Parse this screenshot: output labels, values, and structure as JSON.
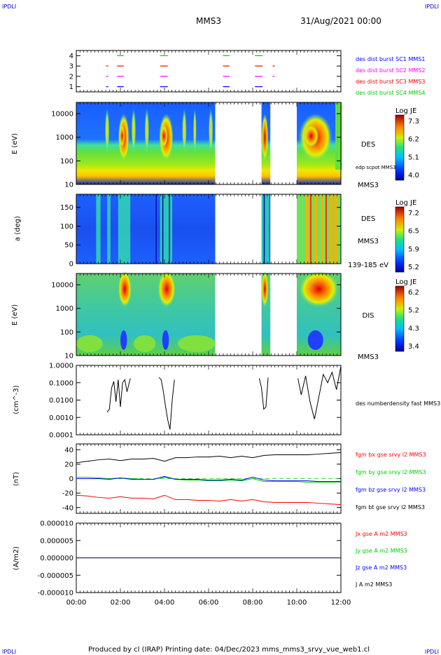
{
  "header": {
    "corner_tl": "IPDLI",
    "corner_tr": "IPDLI",
    "corner_bl": "IPDLI",
    "corner_br": "IPDLI",
    "spacecraft": "MMS3",
    "date": "31/Aug/2021 00:00"
  },
  "footer": {
    "text": "Produced by cl (IRAP)   Printing date: 04/Dec/2023   mms_mms3_srvy_vue_web1.cl"
  },
  "colors": {
    "blue": "#0000ff",
    "magenta": "#ff00ff",
    "red": "#ff0000",
    "green": "#00cc00",
    "black": "#000000"
  },
  "chart_data": [
    {
      "id": "burst",
      "type": "scatter",
      "xlim": [
        0,
        12
      ],
      "ylim": [
        0.5,
        4.5
      ],
      "yticks": [
        "1",
        "2",
        "3",
        "4"
      ],
      "legend": [
        {
          "text": "des dist burst SC1 MMS1",
          "color": "#0000ff"
        },
        {
          "text": "des dist burst SC2 MMS2",
          "color": "#ff00ff"
        },
        {
          "text": "des dist burst SC3 MMS3",
          "color": "#ff0000"
        },
        {
          "text": "des dist burst SC4 MMS4",
          "color": "#00cc00"
        }
      ],
      "intervals_hours": [
        [
          1.35,
          1.45
        ],
        [
          1.85,
          2.15
        ],
        [
          3.8,
          4.15
        ],
        [
          6.65,
          6.95
        ],
        [
          8.1,
          8.45
        ],
        [
          8.9,
          9.0
        ]
      ]
    },
    {
      "id": "des-energy",
      "type": "heatmap",
      "ylabel": "E (eV)",
      "yscale": "log",
      "ylim": [
        10,
        30000
      ],
      "yticks": [
        "10",
        "100",
        "1000",
        "10000"
      ],
      "label": "DES",
      "label2": "MMS3",
      "overlay_label": "edp scpot MMS3",
      "colorbar": {
        "title": "Log JE",
        "ticks": [
          "7.3",
          "6.2",
          "5.1",
          "4.0"
        ]
      },
      "gaps_hours": [
        [
          6.3,
          8.4
        ],
        [
          8.8,
          10.0
        ]
      ]
    },
    {
      "id": "des-pitch",
      "type": "heatmap",
      "ylabel": "a (deg)",
      "ylim": [
        0,
        185
      ],
      "yticks": [
        "0",
        "50",
        "100",
        "150"
      ],
      "label": "DES",
      "label2": "MMS3",
      "energy_range": "139-185 eV",
      "colorbar": {
        "title": "Log JE",
        "ticks": [
          "7.2",
          "6.5",
          "5.9",
          "5.2"
        ]
      },
      "gaps_hours": [
        [
          6.3,
          8.4
        ],
        [
          8.8,
          10.0
        ]
      ]
    },
    {
      "id": "dis-energy",
      "type": "heatmap",
      "ylabel": "E (eV)",
      "yscale": "log",
      "ylim": [
        10,
        30000
      ],
      "yticks": [
        "10",
        "100",
        "1000",
        "10000"
      ],
      "label": "DIS",
      "label2": "MMS3",
      "colorbar": {
        "title": "Log JE",
        "ticks": [
          "6.2",
          "5.2",
          "4.3",
          "3.4"
        ]
      },
      "gaps_hours": [
        [
          6.3,
          8.4
        ],
        [
          8.8,
          10.0
        ]
      ]
    },
    {
      "id": "density",
      "type": "line",
      "ylabel": "(cm^-3)",
      "yscale": "log",
      "ylim": [
        0.0001,
        1.0
      ],
      "yticks": [
        "0.0001",
        "0.0010",
        "0.0100",
        "0.1000",
        "1.0000"
      ],
      "series": [
        {
          "name": "des numberdensity fast MMS3",
          "color": "#000000",
          "segments": [
            {
              "x": [
                1.4,
                1.5,
                1.6,
                1.7,
                1.8,
                1.9,
                2.0,
                2.1,
                2.2,
                2.3,
                2.45
              ],
              "y": [
                0.002,
                0.003,
                0.05,
                0.12,
                0.008,
                0.15,
                0.004,
                0.1,
                0.15,
                0.03,
                0.18
              ]
            },
            {
              "x": [
                3.75,
                3.85,
                3.95,
                4.05,
                4.15,
                4.25,
                4.35,
                4.45
              ],
              "y": [
                0.2,
                0.15,
                0.03,
                0.004,
                0.0007,
                0.0002,
                0.01,
                0.15
              ]
            },
            {
              "x": [
                8.3,
                8.4,
                8.5,
                8.6,
                8.7
              ],
              "y": [
                0.18,
                0.05,
                0.003,
                0.004,
                0.2
              ]
            },
            {
              "x": [
                10.05,
                10.2,
                10.4,
                10.6,
                10.8,
                11.0,
                11.2,
                11.4,
                11.6,
                11.8,
                12.0
              ],
              "y": [
                0.18,
                0.02,
                0.25,
                0.008,
                0.0008,
                0.015,
                0.3,
                0.1,
                0.4,
                0.04,
                0.9
              ]
            }
          ]
        }
      ]
    },
    {
      "id": "fgm",
      "type": "line",
      "ylabel": "(nT)",
      "ylim": [
        -48,
        48
      ],
      "yticks": [
        "-40",
        "-20",
        "0",
        "20",
        "40"
      ],
      "x": [
        0,
        0.5,
        1.0,
        1.5,
        2.0,
        2.5,
        3.0,
        3.5,
        4.0,
        4.5,
        5.0,
        5.5,
        6.0,
        6.5,
        7.0,
        7.5,
        8.0,
        8.5,
        9.0,
        9.5,
        10.0,
        10.5,
        11.0,
        11.5,
        12.0
      ],
      "series": [
        {
          "name": "fgm bx gse srvy l2 MMS3",
          "color": "#ff0000",
          "values": [
            -23,
            -24,
            -26,
            -27,
            -25,
            -27,
            -27,
            -28,
            -23,
            -29,
            -29,
            -30,
            -30,
            -31,
            -29,
            -31,
            -29,
            -32,
            -33,
            -33,
            -33,
            -33,
            -34,
            -35,
            -36
          ]
        },
        {
          "name": "fgm by gse srvy l2 MMS3",
          "color": "#00cc00",
          "values": [
            2,
            2,
            1,
            0,
            1,
            0,
            -1,
            -1,
            2,
            -1,
            -2,
            -2,
            -3,
            -3,
            -2,
            -3,
            0,
            -4,
            -4,
            -4,
            -4,
            -5,
            -5,
            -5,
            -5
          ]
        },
        {
          "name": "fgm bz gse srvy l2 MMS3",
          "color": "#0000ff",
          "values": [
            0,
            0,
            0,
            -1,
            1,
            -1,
            -1,
            -1,
            3,
            -1,
            -1,
            -1,
            -2,
            -2,
            -1,
            -2,
            2,
            -2,
            -3,
            -3,
            -3,
            -3,
            -4,
            -4,
            -4
          ]
        },
        {
          "name": "fgm bt gse srvy l2 MMS3",
          "color": "#000000",
          "values": [
            22,
            24,
            26,
            27,
            25,
            27,
            27,
            28,
            24,
            29,
            29,
            30,
            30,
            31,
            29,
            31,
            29,
            32,
            33,
            33,
            33,
            33,
            34,
            35,
            36
          ]
        }
      ]
    },
    {
      "id": "current",
      "type": "line",
      "ylabel": "(A/m2)",
      "ylim": [
        -1e-05,
        1e-05
      ],
      "yticks": [
        "-0.000010",
        "-0.000005",
        "0.000000",
        "0.000005",
        "0.000010"
      ],
      "xlim": [
        0,
        12
      ],
      "xticks": [
        "00:00",
        "02:00",
        "04:00",
        "06:00",
        "08:00",
        "10:00",
        "12:00"
      ],
      "series": [
        {
          "name": "Jx gse A m2 MMS3",
          "color": "#ff0000",
          "values": [
            0,
            0
          ]
        },
        {
          "name": "Jy gse A m2 MMS3",
          "color": "#00cc00",
          "values": [
            0,
            0
          ]
        },
        {
          "name": "Jz gse A m2 MMS3",
          "color": "#0000ff",
          "values": [
            0,
            0
          ]
        },
        {
          "name": "J A m2 MMS3",
          "color": "#000000",
          "values": [
            0,
            0
          ]
        }
      ]
    }
  ]
}
